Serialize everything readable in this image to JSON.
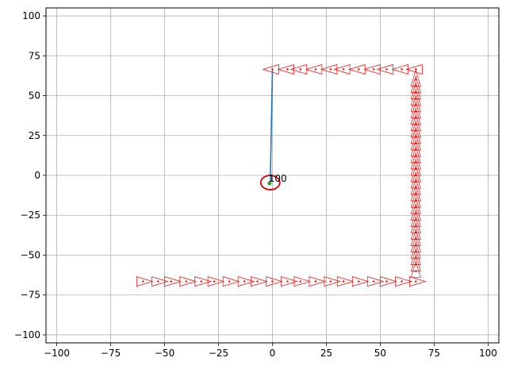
{
  "chart_data": {
    "type": "scatter",
    "title": "",
    "xlabel": "",
    "ylabel": "",
    "xlim": [
      -105,
      105
    ],
    "ylim": [
      -105,
      105
    ],
    "grid": true,
    "xticks": [
      -100,
      -75,
      -50,
      -25,
      0,
      25,
      50,
      75,
      100
    ],
    "yticks": [
      -100,
      -75,
      -50,
      -25,
      0,
      25,
      50,
      75,
      100
    ],
    "xtick_labels": [
      "−100",
      "−75",
      "−50",
      "−25",
      "0",
      "25",
      "50",
      "75",
      "100"
    ],
    "ytick_labels": [
      "−100",
      "−75",
      "−50",
      "−25",
      "0",
      "25",
      "50",
      "75",
      "100"
    ],
    "markers": {
      "bottom_right": {
        "heading": "right",
        "points": [
          [
            -60,
            -66.5
          ],
          [
            -53,
            -66.5
          ],
          [
            -47,
            -66.5
          ],
          [
            -40,
            -66.5
          ],
          [
            -33,
            -66.5
          ],
          [
            -27,
            -66.5
          ],
          [
            -20,
            -66.5
          ],
          [
            -13,
            -66.5
          ],
          [
            -7,
            -66.5
          ],
          [
            0,
            -66.5
          ],
          [
            7,
            -66.5
          ],
          [
            13,
            -66.5
          ],
          [
            20,
            -66.5
          ],
          [
            27,
            -66.5
          ],
          [
            33,
            -66.5
          ],
          [
            40,
            -66.5
          ],
          [
            47,
            -66.5
          ],
          [
            53,
            -66.5
          ],
          [
            60,
            -66.5
          ],
          [
            66.5,
            -66.5
          ]
        ]
      },
      "right_up": {
        "heading": "up",
        "points": [
          [
            66.5,
            -60
          ],
          [
            66.5,
            -56
          ],
          [
            66.5,
            -52
          ],
          [
            66.5,
            -48
          ],
          [
            66.5,
            -44
          ],
          [
            66.5,
            -40
          ],
          [
            66.5,
            -36
          ],
          [
            66.5,
            -32
          ],
          [
            66.5,
            -28
          ],
          [
            66.5,
            -24
          ],
          [
            66.5,
            -20
          ],
          [
            66.5,
            -16
          ],
          [
            66.5,
            -12
          ],
          [
            66.5,
            -8
          ],
          [
            66.5,
            -4
          ],
          [
            66.5,
            0
          ],
          [
            66.5,
            4
          ],
          [
            66.5,
            8
          ],
          [
            66.5,
            12
          ],
          [
            66.5,
            16
          ],
          [
            66.5,
            20
          ],
          [
            66.5,
            24
          ],
          [
            66.5,
            28
          ],
          [
            66.5,
            32
          ],
          [
            66.5,
            36
          ],
          [
            66.5,
            40
          ],
          [
            66.5,
            44
          ],
          [
            66.5,
            48
          ],
          [
            66.5,
            52
          ],
          [
            66.5,
            56
          ],
          [
            66.5,
            60
          ]
        ]
      },
      "top_left": {
        "heading": "left",
        "points": [
          [
            66.5,
            66.5
          ],
          [
            60,
            66.5
          ],
          [
            53,
            66.5
          ],
          [
            47,
            66.5
          ],
          [
            40,
            66.5
          ],
          [
            33,
            66.5
          ],
          [
            27,
            66.5
          ],
          [
            20,
            66.5
          ],
          [
            13,
            66.5
          ],
          [
            7,
            66.5
          ],
          [
            0,
            66.5
          ]
        ]
      },
      "color": "#ff0000"
    },
    "trajectory": {
      "color": "#1f77b4",
      "points": [
        [
          0,
          66.5
        ],
        [
          -1,
          -5
        ]
      ]
    },
    "current": {
      "x": -1,
      "y": -4.5,
      "circle_color": "#e00000",
      "dot_color": "#2ca02c",
      "label": "100"
    }
  }
}
